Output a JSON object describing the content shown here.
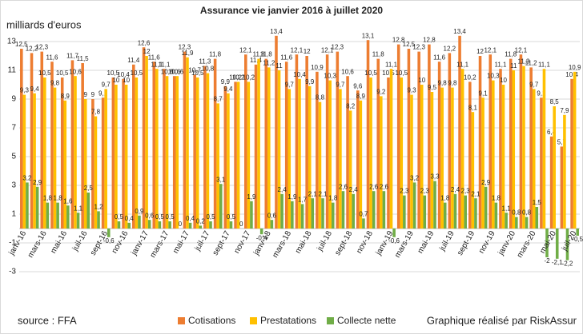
{
  "chart_data": {
    "type": "bar",
    "title": "Assurance vie janvier 2016 à juillet 2020",
    "y_label": "milliards d'euros",
    "source": "source : FFA",
    "credit": "Graphique réalisé par RiskAssur",
    "categories": [
      "janv-16",
      null,
      "mars-16",
      null,
      "mai-16",
      null,
      "juil-16",
      null,
      "sept-16",
      null,
      "nov-16",
      null,
      "janv-17",
      null,
      "mars-17",
      null,
      "mai-17",
      null,
      "juil-17",
      null,
      "sept-17",
      null,
      "nov-17",
      null,
      "janv-18",
      null,
      "mars-18",
      null,
      "mai-18",
      null,
      "juil-18",
      null,
      "sept-18",
      null,
      "nov-18",
      null,
      "janv-19",
      null,
      "mars-19",
      null,
      "mai-19",
      null,
      "juil-19",
      null,
      "sept-19",
      null,
      "nov-19",
      null,
      "janv-20",
      null,
      "mars-20",
      null,
      "mai-20",
      null,
      "juil-20"
    ],
    "series": [
      {
        "name": "Cotisations",
        "color": "#ed7d31",
        "values": [
          12.5,
          12.2,
          12.3,
          11.6,
          10.5,
          11.7,
          11.5,
          9.0,
          9.1,
          10.5,
          10.4,
          11.4,
          12.6,
          11.6,
          11.1,
          10.6,
          12.3,
          10.7,
          11.3,
          11.8,
          9.9,
          10.2,
          12.1,
          11.4,
          11.8,
          13.4,
          11.6,
          12.1,
          12.0,
          10.9,
          12.1,
          12.3,
          10.6,
          9.6,
          13.1,
          11.8,
          10.5,
          12.8,
          12.5,
          12.3,
          12.8,
          11.6,
          12.2,
          13.4,
          10.2,
          12.0,
          12.1,
          11.1,
          11.8,
          12.1,
          11.2,
          9.1,
          6.4,
          5.7,
          10.4
        ],
        "value_labels": [
          "12,5",
          "12,2",
          "12,3",
          "11,6",
          "10,5",
          "11,7",
          "11,5",
          "9",
          "9,1",
          "10,5",
          "10,4",
          "11,4",
          "12,6",
          "11,6",
          "11,1",
          "10,6",
          "12,3",
          "10,7",
          "11,3",
          "11,8",
          "9,9",
          "10,2",
          "12,1",
          "11,4",
          "11,8",
          "13,4",
          "11,6",
          "12,1",
          "12",
          "10,9",
          "12,1",
          "12,3",
          "10,6",
          "9,6",
          "13,1",
          "11,8",
          "10,5",
          "12,8",
          "12,5",
          "12,3",
          "12,8",
          "11,6",
          "12,2",
          "13,4",
          "10,2",
          "12",
          "12,1",
          "11,1",
          "11,8",
          "12,1",
          "11,2",
          "9,1",
          "6,4",
          "5,7",
          "10,4"
        ]
      },
      {
        "name": "Prestatations",
        "color": "#ffc000",
        "values": [
          9.3,
          9.4,
          10.5,
          9.8,
          8.9,
          10.6,
          9.0,
          7.8,
          9.7,
          10.0,
          10.0,
          10.5,
          12.0,
          11.1,
          10.6,
          10.6,
          11.9,
          10.5,
          10.8,
          8.7,
          9.4,
          10.2,
          10.2,
          11.8,
          11.2,
          11.0,
          9.7,
          10.4,
          9.9,
          8.8,
          10.3,
          9.7,
          8.2,
          8.9,
          10.5,
          9.2,
          11.1,
          10.5,
          9.3,
          10.0,
          9.5,
          9.8,
          9.8,
          11.1,
          8.1,
          9.1,
          10.3,
          10.0,
          11.0,
          11.3,
          9.7,
          11.1,
          8.5,
          7.9,
          10.9
        ],
        "value_labels": [
          "9,3",
          "9,4",
          "10,5",
          "9,8",
          "8,9",
          "10,6",
          "9",
          "7,8",
          "9,7",
          "10",
          "10",
          "10,5",
          "12",
          "11,1",
          "10,6",
          "10,6",
          "11,9",
          "10,5",
          "10,8",
          "8,7",
          "9,4",
          "10,2",
          "10,2",
          "11,8",
          "11,2",
          "11",
          "9,7",
          "10,4",
          "9,9",
          "8,8",
          "10,3",
          "9,7",
          "8,2",
          "8,9",
          "10,5",
          "9,2",
          "11,1",
          "10,5",
          "9,3",
          "10",
          "9,5",
          "9,8",
          "9,8",
          "11,1",
          "8,1",
          "9,1",
          "10,3",
          "10",
          "11",
          "11,3",
          "9,7",
          "11,1",
          "8,5",
          "7,9",
          "10,9"
        ]
      },
      {
        "name": "Collecte nette",
        "color": "#70ad47",
        "values": [
          3.2,
          2.9,
          1.8,
          1.8,
          1.6,
          1.1,
          2.5,
          1.2,
          -0.6,
          0.5,
          0.4,
          0.9,
          0.6,
          0.5,
          0.5,
          0,
          0.4,
          0.2,
          0.5,
          3.1,
          0.5,
          0,
          1.9,
          -0.4,
          0.6,
          2.4,
          1.9,
          1.7,
          2.1,
          2.1,
          1.8,
          2.6,
          2.4,
          0.7,
          2.6,
          2.6,
          -0.6,
          2.3,
          3.2,
          2.3,
          3.3,
          1.8,
          2.4,
          2.3,
          2.1,
          2.9,
          1.8,
          1.1,
          0.8,
          0.8,
          1.5,
          -2.0,
          -2.1,
          -2.2,
          -0.5
        ],
        "value_labels": [
          "3,2",
          "2,9",
          "1,8",
          "1,8",
          "1,6",
          "1,1",
          "2,5",
          "1,2",
          "-0,6",
          "0,5",
          "0,4",
          "0,9",
          "0,6",
          "0,5",
          "0,5",
          "0",
          "0,4",
          "0,2",
          "0,5",
          "3,1",
          "0,5",
          "0",
          "1,9",
          "-0,4",
          "0,6",
          "2,4",
          "1,9",
          "1,7",
          "2,1",
          "2,1",
          "1,8",
          "2,6",
          "2,4",
          "0,7",
          "2,6",
          "2,6",
          "-0,6",
          "2,3",
          "3,2",
          "2,3",
          "3,3",
          "1,8",
          "2,4",
          "2,3",
          "2,1",
          "2,9",
          "1,8",
          "1,1",
          "0,8",
          "0,8",
          "1,5",
          "-2",
          "-2,1",
          "-2,2",
          "-0,5"
        ]
      }
    ],
    "ylim": [
      -3,
      14
    ],
    "yticks": [
      -3,
      -1,
      1,
      3,
      5,
      7,
      9,
      11,
      13
    ],
    "grid": true,
    "legend": "bottom"
  }
}
